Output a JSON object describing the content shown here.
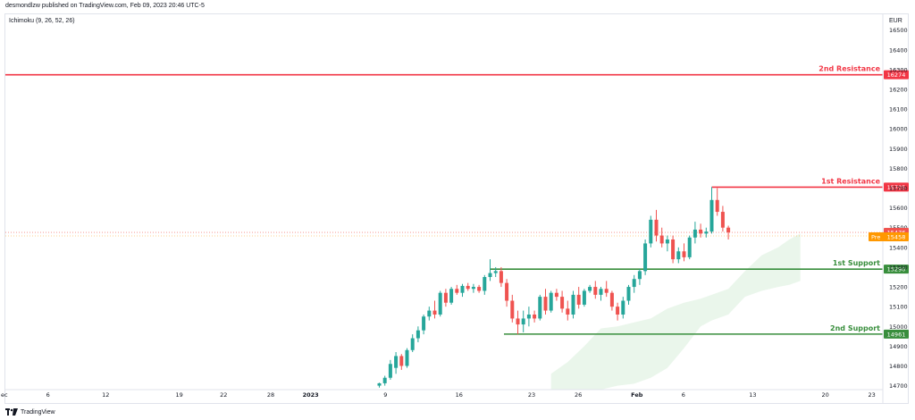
{
  "header": {
    "publisher": "desmondlzw published on TradingView.com, Feb 09, 2023 20:46 UTC-5",
    "indicator": "Ichimoku (9, 26, 52, 26)",
    "currency": "EUR",
    "footer_brand": "TradingView"
  },
  "colors": {
    "bull": "#26a69a",
    "bear": "#ef5350",
    "resistance": "#f23645",
    "support": "#388e3c",
    "cloud": "#e8f5e9",
    "pre": "#ff9800",
    "axis_text": "#131722"
  },
  "chart_data": {
    "type": "candlestick",
    "ylim": [
      14680,
      16580
    ],
    "y_ticks": [
      14700,
      14800,
      14900,
      15000,
      15100,
      15200,
      15300,
      15400,
      15500,
      15600,
      15700,
      15800,
      15900,
      16000,
      16100,
      16200,
      16300,
      16400,
      16500
    ],
    "x_ticks": [
      "ec",
      "6",
      "12",
      "19",
      "22",
      "28",
      "2023",
      "9",
      "16",
      "23",
      "26",
      "Feb",
      "6",
      "13",
      "20",
      "23"
    ],
    "levels": [
      {
        "name": "2nd Resistance",
        "value": 16274,
        "kind": "resistance"
      },
      {
        "name": "1st Resistance",
        "value": 15705,
        "kind": "resistance"
      },
      {
        "name": "1st Support",
        "value": 15290,
        "kind": "support"
      },
      {
        "name": "2nd Support",
        "value": 14961,
        "kind": "support"
      }
    ],
    "price_tags": [
      {
        "label": "15476",
        "value": 15476,
        "kind": "last"
      },
      {
        "label": "Pre",
        "value": 15458,
        "kind": "pre",
        "price_label": "15458"
      }
    ],
    "candles": [
      [
        14700,
        14715,
        14690,
        14712
      ],
      [
        14712,
        14750,
        14700,
        14740
      ],
      [
        14740,
        14830,
        14730,
        14810
      ],
      [
        14790,
        14870,
        14760,
        14850
      ],
      [
        14850,
        14860,
        14780,
        14800
      ],
      [
        14800,
        14890,
        14790,
        14880
      ],
      [
        14880,
        14960,
        14870,
        14940
      ],
      [
        14940,
        15000,
        14920,
        14980
      ],
      [
        14980,
        15060,
        14960,
        15050
      ],
      [
        15050,
        15100,
        15030,
        15080
      ],
      [
        15080,
        15130,
        15040,
        15060
      ],
      [
        15060,
        15180,
        15050,
        15170
      ],
      [
        15170,
        15190,
        15100,
        15120
      ],
      [
        15120,
        15200,
        15110,
        15190
      ],
      [
        15190,
        15210,
        15160,
        15170
      ],
      [
        15170,
        15215,
        15150,
        15205
      ],
      [
        15205,
        15220,
        15180,
        15190
      ],
      [
        15190,
        15215,
        15170,
        15200
      ],
      [
        15200,
        15210,
        15170,
        15180
      ],
      [
        15180,
        15260,
        15160,
        15250
      ],
      [
        15250,
        15340,
        15230,
        15270
      ],
      [
        15270,
        15300,
        15250,
        15280
      ],
      [
        15280,
        15300,
        15200,
        15220
      ],
      [
        15220,
        15240,
        15100,
        15130
      ],
      [
        15130,
        15160,
        15020,
        15040
      ],
      [
        15040,
        15080,
        14960,
        15010
      ],
      [
        15010,
        15080,
        14970,
        15040
      ],
      [
        15040,
        15100,
        15000,
        15060
      ],
      [
        15060,
        15080,
        15020,
        15040
      ],
      [
        15040,
        15160,
        15030,
        15150
      ],
      [
        15150,
        15190,
        15060,
        15080
      ],
      [
        15080,
        15180,
        15070,
        15170
      ],
      [
        15170,
        15190,
        15130,
        15150
      ],
      [
        15150,
        15180,
        15070,
        15090
      ],
      [
        15090,
        15130,
        15030,
        15060
      ],
      [
        15060,
        15180,
        15040,
        15160
      ],
      [
        15160,
        15200,
        15090,
        15110
      ],
      [
        15110,
        15190,
        15100,
        15180
      ],
      [
        15180,
        15210,
        15170,
        15200
      ],
      [
        15200,
        15230,
        15140,
        15160
      ],
      [
        15160,
        15200,
        15130,
        15190
      ],
      [
        15190,
        15230,
        15150,
        15170
      ],
      [
        15170,
        15180,
        15080,
        15100
      ],
      [
        15100,
        15120,
        15030,
        15060
      ],
      [
        15060,
        15150,
        15040,
        15130
      ],
      [
        15130,
        15210,
        15110,
        15200
      ],
      [
        15200,
        15260,
        15170,
        15240
      ],
      [
        15240,
        15290,
        15210,
        15280
      ],
      [
        15280,
        15440,
        15260,
        15420
      ],
      [
        15420,
        15560,
        15400,
        15540
      ],
      [
        15540,
        15590,
        15430,
        15460
      ],
      [
        15460,
        15500,
        15400,
        15420
      ],
      [
        15420,
        15460,
        15380,
        15440
      ],
      [
        15440,
        15460,
        15320,
        15340
      ],
      [
        15340,
        15400,
        15320,
        15380
      ],
      [
        15380,
        15420,
        15330,
        15350
      ],
      [
        15350,
        15460,
        15340,
        15450
      ],
      [
        15450,
        15530,
        15420,
        15490
      ],
      [
        15490,
        15520,
        15450,
        15470
      ],
      [
        15470,
        15500,
        15450,
        15480
      ],
      [
        15480,
        15705,
        15470,
        15640
      ],
      [
        15640,
        15700,
        15560,
        15580
      ],
      [
        15580,
        15610,
        15480,
        15500
      ],
      [
        15500,
        15510,
        15440,
        15476
      ]
    ],
    "cloud": [
      [
        31,
        14680,
        14760
      ],
      [
        34,
        14680,
        14820
      ],
      [
        37,
        14680,
        14900
      ],
      [
        40,
        14680,
        14990
      ],
      [
        43,
        14700,
        15000
      ],
      [
        46,
        14710,
        15020
      ],
      [
        49,
        14740,
        15040
      ],
      [
        52,
        14790,
        15090
      ],
      [
        55,
        14890,
        15120
      ],
      [
        58,
        15000,
        15140
      ],
      [
        60,
        15030,
        15160
      ],
      [
        63,
        15060,
        15190
      ],
      [
        66,
        15150,
        15280
      ],
      [
        69,
        15180,
        15360
      ],
      [
        72,
        15200,
        15400
      ],
      [
        74,
        15210,
        15440
      ],
      [
        76,
        15230,
        15470
      ]
    ]
  }
}
